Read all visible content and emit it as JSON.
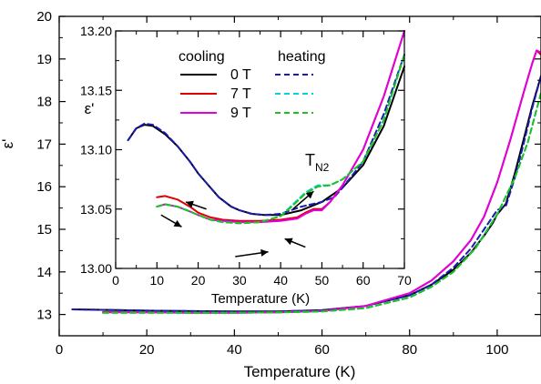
{
  "chart_data": [
    {
      "id": "main",
      "type": "line",
      "xlabel": "Temperature (K)",
      "ylabel": "ε'",
      "xlim": [
        0,
        110
      ],
      "ylim": [
        12.5,
        20
      ],
      "xticks": [
        0,
        20,
        40,
        60,
        80,
        100
      ],
      "yticks": [
        13,
        14,
        15,
        16,
        17,
        18,
        19,
        20
      ],
      "grid": false,
      "series": [
        {
          "color": "#000000",
          "dash": false,
          "x": [
            3,
            10,
            20,
            30,
            40,
            50,
            60,
            70,
            80,
            85,
            90,
            94,
            97,
            99,
            100,
            102,
            104,
            106,
            108,
            110
          ],
          "y": [
            13.12,
            13.11,
            13.09,
            13.08,
            13.07,
            13.07,
            13.1,
            13.2,
            13.45,
            13.7,
            14.05,
            14.45,
            14.85,
            15.15,
            15.35,
            15.6,
            16.3,
            17.1,
            17.9,
            18.6
          ]
        },
        {
          "color": "#1a1ab4",
          "dash": true,
          "x": [
            3,
            10,
            20,
            30,
            40,
            50,
            60,
            70,
            80,
            85,
            90,
            94,
            97,
            99,
            100,
            102,
            104,
            106,
            108,
            110
          ],
          "y": [
            13.12,
            13.11,
            13.09,
            13.08,
            13.07,
            13.07,
            13.1,
            13.2,
            13.45,
            13.7,
            14.1,
            14.55,
            15.0,
            15.3,
            15.45,
            15.55,
            16.2,
            17.0,
            17.85,
            18.6
          ]
        },
        {
          "color": "#e00000",
          "dash": false,
          "x": [
            10,
            20,
            30,
            40,
            50,
            60,
            70,
            80,
            85,
            90,
            94,
            97,
            100,
            103,
            106,
            108,
            109,
            110
          ],
          "y": [
            13.06,
            13.05,
            13.04,
            13.04,
            13.05,
            13.08,
            13.2,
            13.5,
            13.8,
            14.25,
            14.75,
            15.3,
            16.1,
            17.1,
            18.2,
            18.9,
            19.2,
            19.1
          ]
        },
        {
          "color": "#e000e0",
          "dash": false,
          "x": [
            10,
            20,
            30,
            40,
            50,
            60,
            70,
            80,
            85,
            90,
            94,
            97,
            100,
            103,
            106,
            108,
            109,
            110
          ],
          "y": [
            13.05,
            13.05,
            13.04,
            13.04,
            13.05,
            13.08,
            13.2,
            13.5,
            13.8,
            14.25,
            14.75,
            15.3,
            16.1,
            17.1,
            18.2,
            18.9,
            19.2,
            19.15
          ]
        },
        {
          "color": "#00d8d8",
          "dash": true,
          "x": [
            10,
            20,
            30,
            40,
            50,
            60,
            70,
            80,
            85,
            90,
            95,
            100,
            104,
            107,
            110
          ],
          "y": [
            13.04,
            13.04,
            13.04,
            13.04,
            13.05,
            13.07,
            13.15,
            13.4,
            13.65,
            14.0,
            14.55,
            15.35,
            16.2,
            17.05,
            18.2
          ]
        },
        {
          "color": "#20c020",
          "dash": true,
          "x": [
            10,
            20,
            30,
            40,
            50,
            60,
            70,
            80,
            85,
            90,
            95,
            100,
            104,
            107,
            110
          ],
          "y": [
            13.04,
            13.04,
            13.04,
            13.04,
            13.05,
            13.07,
            13.15,
            13.4,
            13.65,
            14.0,
            14.55,
            15.35,
            16.2,
            17.05,
            18.2
          ]
        }
      ]
    },
    {
      "id": "inset",
      "type": "line",
      "xlabel": "Temperature (K)",
      "ylabel": "ε'",
      "xlim": [
        0,
        70
      ],
      "ylim": [
        13.0,
        13.2
      ],
      "xticks": [
        0,
        10,
        20,
        30,
        40,
        50,
        60,
        70
      ],
      "yticks": [
        13.0,
        13.05,
        13.1,
        13.15,
        13.2
      ],
      "ytick_labels": [
        "13.00",
        "13.05",
        "13.10",
        "13.15",
        "13.20"
      ],
      "grid": false,
      "legend": {
        "headers": [
          "cooling",
          "heating"
        ],
        "entries": [
          {
            "label": "0 T",
            "cooling_color": "#000000",
            "heating_color": "#1a1ab4"
          },
          {
            "label": "7 T",
            "cooling_color": "#e00000",
            "heating_color": "#00d8d8"
          },
          {
            "label": "9 T",
            "cooling_color": "#e000e0",
            "heating_color": "#20c020"
          }
        ]
      },
      "annotation": {
        "text": "T",
        "subscript": "N2",
        "x": 43,
        "y": 13.08
      },
      "arrows": [
        {
          "from": [
            11,
            13.045
          ],
          "to": [
            16,
            13.035
          ]
        },
        {
          "from": [
            22,
            13.05
          ],
          "to": [
            17,
            13.056
          ]
        },
        {
          "from": [
            29,
            13.01
          ],
          "to": [
            37,
            13.014
          ]
        },
        {
          "from": [
            46,
            13.018
          ],
          "to": [
            41,
            13.025
          ]
        },
        {
          "from": [
            43,
            13.05
          ],
          "to": [
            48,
            13.065
          ]
        }
      ],
      "series": [
        {
          "color": "#000000",
          "dash": false,
          "x": [
            3,
            5,
            7,
            9,
            12,
            15,
            18,
            20,
            22,
            25,
            28,
            30,
            33,
            36,
            40,
            45,
            50,
            55,
            60,
            65,
            70
          ],
          "y": [
            13.108,
            13.118,
            13.121,
            13.12,
            13.113,
            13.103,
            13.09,
            13.08,
            13.072,
            13.06,
            13.052,
            13.049,
            13.046,
            13.045,
            13.045,
            13.049,
            13.056,
            13.068,
            13.087,
            13.12,
            13.17
          ]
        },
        {
          "color": "#1a1ab4",
          "dash": true,
          "x": [
            3,
            5,
            7,
            9,
            12,
            15,
            18,
            20,
            22,
            25,
            28,
            30,
            33,
            36,
            40,
            45,
            50,
            53,
            55,
            60,
            65,
            70
          ],
          "y": [
            13.108,
            13.118,
            13.122,
            13.121,
            13.114,
            13.103,
            13.09,
            13.08,
            13.072,
            13.06,
            13.052,
            13.049,
            13.046,
            13.045,
            13.046,
            13.052,
            13.056,
            13.06,
            13.068,
            13.09,
            13.13,
            13.18
          ]
        },
        {
          "color": "#e00000",
          "dash": false,
          "x": [
            10,
            12,
            15,
            18,
            20,
            23,
            26,
            30,
            35,
            40,
            44,
            46,
            48,
            50,
            52,
            55,
            60,
            65,
            70
          ],
          "y": [
            13.06,
            13.061,
            13.058,
            13.052,
            13.047,
            13.043,
            13.041,
            13.04,
            13.04,
            13.041,
            13.043,
            13.047,
            13.05,
            13.05,
            13.056,
            13.07,
            13.1,
            13.145,
            13.21
          ]
        },
        {
          "color": "#e000e0",
          "dash": false,
          "x": [
            10,
            12,
            15,
            18,
            20,
            23,
            26,
            30,
            35,
            40,
            44,
            46,
            48,
            50,
            52,
            55,
            60,
            65,
            70
          ],
          "y": [
            13.052,
            13.054,
            13.052,
            13.048,
            13.045,
            13.041,
            13.04,
            13.039,
            13.039,
            13.04,
            13.042,
            13.046,
            13.049,
            13.049,
            13.056,
            13.07,
            13.1,
            13.145,
            13.21
          ]
        },
        {
          "color": "#00d8d8",
          "dash": true,
          "x": [
            10,
            12,
            15,
            18,
            20,
            23,
            26,
            30,
            35,
            40,
            43,
            46,
            49,
            52,
            55,
            60,
            65,
            70
          ],
          "y": [
            13.052,
            13.054,
            13.052,
            13.048,
            13.045,
            13.041,
            13.039,
            13.038,
            13.039,
            13.044,
            13.054,
            13.064,
            13.07,
            13.07,
            13.075,
            13.09,
            13.125,
            13.18
          ]
        },
        {
          "color": "#20c020",
          "dash": true,
          "x": [
            10,
            12,
            15,
            18,
            20,
            23,
            26,
            30,
            35,
            40,
            43,
            46,
            49,
            52,
            55,
            60,
            65,
            70
          ],
          "y": [
            13.052,
            13.054,
            13.052,
            13.048,
            13.045,
            13.041,
            13.039,
            13.038,
            13.039,
            13.044,
            13.053,
            13.063,
            13.069,
            13.07,
            13.075,
            13.09,
            13.125,
            13.18
          ]
        }
      ]
    }
  ]
}
